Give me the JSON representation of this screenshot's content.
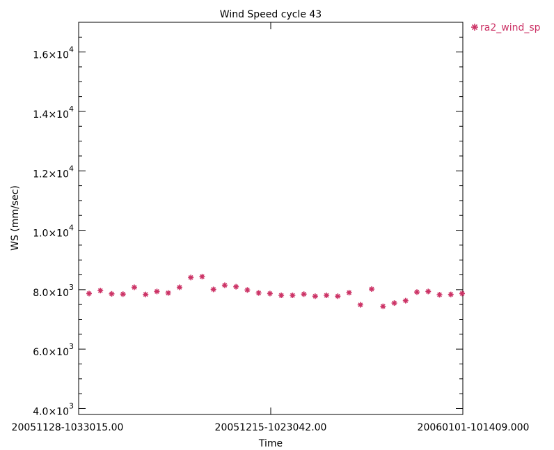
{
  "chart_data": {
    "type": "scatter",
    "title": "Wind Speed cycle 43",
    "xlabel": "Time",
    "ylabel": "WS (mm/sec)",
    "ylim": [
      3800,
      17000
    ],
    "y_ticks": [
      {
        "value": 4000,
        "mantissa": "4.0",
        "exp": "3"
      },
      {
        "value": 6000,
        "mantissa": "6.0",
        "exp": "3"
      },
      {
        "value": 8000,
        "mantissa": "8.0",
        "exp": "3"
      },
      {
        "value": 10000,
        "mantissa": "1.0",
        "exp": "4"
      },
      {
        "value": 12000,
        "mantissa": "1.2",
        "exp": "4"
      },
      {
        "value": 14000,
        "mantissa": "1.4",
        "exp": "4"
      },
      {
        "value": 16000,
        "mantissa": "1.6",
        "exp": "4"
      }
    ],
    "x_ticks": [
      "20051128-1033015.00",
      "20051215-1023042.00",
      "20060101-101409.000"
    ],
    "series": [
      {
        "name": "ra2_wind_sp",
        "color": "#cc3366",
        "marker": "asterisk",
        "values": [
          7870,
          7970,
          7860,
          7850,
          8080,
          7840,
          7940,
          7890,
          8080,
          8410,
          8440,
          8010,
          8150,
          8100,
          7990,
          7890,
          7870,
          7810,
          7810,
          7850,
          7780,
          7810,
          7780,
          7900,
          7490,
          8020,
          7440,
          7550,
          7630,
          7920,
          7940,
          7830,
          7840,
          7870
        ]
      }
    ],
    "grid": false,
    "legend": "top-right"
  }
}
